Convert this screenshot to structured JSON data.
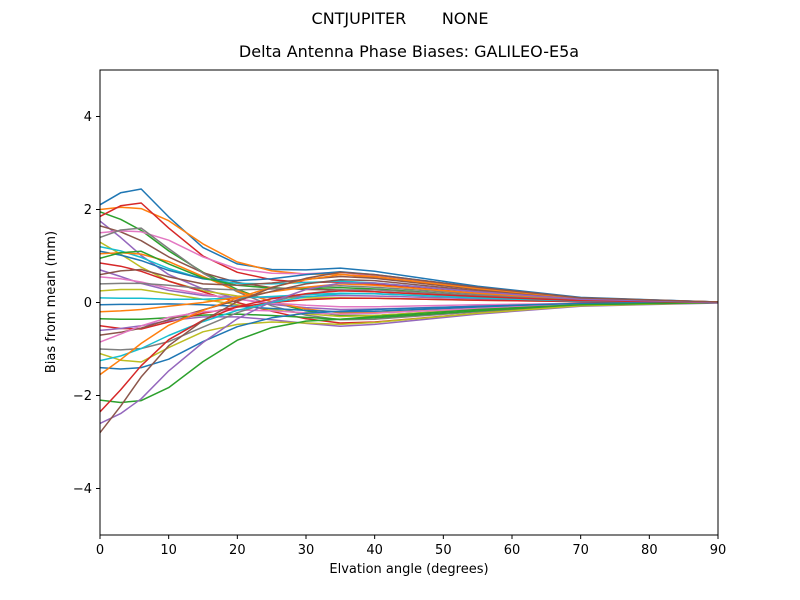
{
  "chart_data": {
    "type": "line",
    "suptitle": "CNTJUPITER       NONE",
    "title": "Delta Antenna Phase Biases: GALILEO-E5a",
    "xlabel": "Elvation angle (degrees)",
    "ylabel": "Bias from mean (mm)",
    "xlim": [
      0,
      90
    ],
    "ylim": [
      -5,
      5
    ],
    "xticks": [
      0,
      10,
      20,
      30,
      40,
      50,
      60,
      70,
      80,
      90
    ],
    "yticks": [
      -4,
      -2,
      0,
      2,
      4
    ],
    "grid": false,
    "legend": "none",
    "line_width": 1.5,
    "color_cycle": [
      "#1f77b4",
      "#ff7f0e",
      "#2ca02c",
      "#d62728",
      "#9467bd",
      "#8c564b",
      "#e377c2",
      "#7f7f7f",
      "#bcbd22",
      "#17becf"
    ],
    "x": [
      0,
      3,
      6,
      10,
      15,
      20,
      25,
      30,
      35,
      40,
      55,
      70,
      90
    ],
    "series": [
      {
        "values": [
          2.1,
          2.36,
          2.44,
          1.84,
          1.18,
          0.83,
          0.71,
          0.7,
          0.74,
          0.67,
          0.35,
          0.11,
          0.01
        ]
      },
      {
        "values": [
          2.0,
          2.05,
          2.02,
          1.76,
          1.26,
          0.87,
          0.68,
          0.61,
          0.61,
          0.53,
          0.28,
          0.08,
          0.01
        ]
      },
      {
        "values": [
          1.95,
          1.79,
          1.55,
          1.11,
          0.65,
          0.28,
          0.01,
          -0.18,
          -0.28,
          -0.28,
          -0.15,
          -0.05,
          0
        ]
      },
      {
        "values": [
          1.85,
          2.08,
          2.14,
          1.6,
          1.0,
          0.65,
          0.49,
          0.43,
          0.44,
          0.39,
          0.2,
          0.06,
          0
        ]
      },
      {
        "values": [
          1.75,
          1.4,
          1.01,
          0.6,
          0.29,
          0.08,
          -0.04,
          -0.11,
          -0.15,
          -0.14,
          -0.08,
          -0.02,
          0
        ]
      },
      {
        "values": [
          1.65,
          1.52,
          1.33,
          0.98,
          0.64,
          0.43,
          0.32,
          0.28,
          0.27,
          0.23,
          0.13,
          0.04,
          0
        ]
      },
      {
        "values": [
          1.5,
          1.54,
          1.52,
          1.34,
          0.98,
          0.72,
          0.63,
          0.62,
          0.65,
          0.57,
          0.3,
          0.09,
          0.01
        ]
      },
      {
        "values": [
          1.4,
          1.56,
          1.6,
          1.16,
          0.63,
          0.23,
          -0.07,
          -0.27,
          -0.37,
          -0.36,
          -0.2,
          -0.06,
          0
        ]
      },
      {
        "values": [
          1.3,
          1.04,
          0.76,
          0.46,
          0.25,
          0.14,
          0.1,
          0.1,
          0.1,
          0.09,
          0.05,
          0.02,
          0
        ]
      },
      {
        "values": [
          1.2,
          1.11,
          0.97,
          0.73,
          0.51,
          0.41,
          0.4,
          0.43,
          0.46,
          0.42,
          0.23,
          0.07,
          0
        ]
      },
      {
        "values": [
          1.1,
          1.02,
          0.9,
          0.69,
          0.51,
          0.47,
          0.51,
          0.6,
          0.66,
          0.6,
          0.33,
          0.1,
          0.01
        ]
      },
      {
        "values": [
          1.05,
          1.07,
          1.04,
          0.88,
          0.56,
          0.25,
          0.02,
          -0.14,
          -0.22,
          -0.22,
          -0.13,
          -0.04,
          0
        ]
      },
      {
        "values": [
          0.95,
          1.07,
          1.1,
          0.83,
          0.53,
          0.37,
          0.31,
          0.3,
          0.32,
          0.29,
          0.15,
          0.05,
          0
        ]
      },
      {
        "values": [
          0.85,
          0.78,
          0.67,
          0.46,
          0.23,
          0.0,
          -0.19,
          -0.35,
          -0.44,
          -0.42,
          -0.23,
          -0.07,
          0
        ]
      },
      {
        "values": [
          0.7,
          0.56,
          0.41,
          0.26,
          0.15,
          0.11,
          0.11,
          0.13,
          0.15,
          0.14,
          0.08,
          0.02,
          0
        ]
      },
      {
        "values": [
          0.6,
          0.68,
          0.71,
          0.55,
          0.4,
          0.37,
          0.42,
          0.5,
          0.56,
          0.52,
          0.28,
          0.08,
          0.01
        ]
      },
      {
        "values": [
          0.55,
          0.51,
          0.44,
          0.31,
          0.18,
          0.07,
          -0.01,
          -0.06,
          -0.09,
          -0.09,
          -0.05,
          -0.02,
          0
        ]
      },
      {
        "values": [
          0.4,
          0.41,
          0.41,
          0.37,
          0.3,
          0.27,
          0.29,
          0.33,
          0.36,
          0.33,
          0.18,
          0.05,
          0
        ]
      },
      {
        "values": [
          0.25,
          0.28,
          0.28,
          0.19,
          0.07,
          -0.05,
          -0.15,
          -0.24,
          -0.3,
          -0.28,
          -0.15,
          -0.05,
          0
        ]
      },
      {
        "values": [
          0.1,
          0.09,
          0.09,
          0.07,
          0.07,
          0.1,
          0.13,
          0.17,
          0.2,
          0.19,
          0.1,
          0.03,
          0
        ]
      },
      {
        "values": [
          -0.05,
          -0.04,
          -0.04,
          -0.03,
          -0.05,
          -0.08,
          -0.13,
          -0.17,
          -0.2,
          -0.19,
          -0.1,
          -0.03,
          0
        ]
      },
      {
        "values": [
          -0.2,
          -0.18,
          -0.15,
          -0.08,
          0.0,
          0.11,
          0.23,
          0.33,
          0.4,
          0.37,
          0.2,
          0.06,
          0
        ]
      },
      {
        "values": [
          -0.35,
          -0.36,
          -0.36,
          -0.33,
          -0.27,
          -0.25,
          -0.28,
          -0.32,
          -0.36,
          -0.33,
          -0.18,
          -0.05,
          0
        ]
      },
      {
        "values": [
          -0.5,
          -0.56,
          -0.57,
          -0.42,
          -0.23,
          -0.1,
          0.0,
          0.06,
          0.09,
          0.09,
          0.05,
          0.02,
          0
        ]
      },
      {
        "values": [
          -0.6,
          -0.56,
          -0.5,
          -0.39,
          -0.31,
          -0.31,
          -0.37,
          -0.45,
          -0.51,
          -0.47,
          -0.25,
          -0.08,
          -0.01
        ]
      },
      {
        "values": [
          -0.7,
          -0.64,
          -0.55,
          -0.37,
          -0.16,
          0.05,
          0.24,
          0.4,
          0.49,
          0.47,
          0.25,
          0.08,
          0
        ]
      },
      {
        "values": [
          -0.85,
          -0.68,
          -0.5,
          -0.32,
          -0.2,
          -0.16,
          -0.18,
          -0.22,
          -0.25,
          -0.23,
          -0.13,
          -0.04,
          0
        ]
      },
      {
        "values": [
          -1.0,
          -1.02,
          -0.99,
          -0.84,
          -0.53,
          -0.22,
          0.02,
          0.19,
          0.27,
          0.27,
          0.15,
          0.05,
          0
        ]
      },
      {
        "values": [
          -1.1,
          -1.24,
          -1.28,
          -0.97,
          -0.63,
          -0.47,
          -0.42,
          -0.44,
          -0.47,
          -0.43,
          -0.23,
          -0.07,
          0
        ]
      },
      {
        "values": [
          -1.25,
          -1.15,
          -0.99,
          -0.71,
          -0.41,
          -0.17,
          0.0,
          0.12,
          0.19,
          0.19,
          0.1,
          0.03,
          0
        ]
      },
      {
        "values": [
          -1.4,
          -1.43,
          -1.4,
          -1.22,
          -0.84,
          -0.52,
          -0.33,
          -0.23,
          -0.19,
          -0.15,
          -0.08,
          -0.02,
          0
        ]
      },
      {
        "values": [
          -1.55,
          -1.23,
          -0.88,
          -0.49,
          -0.17,
          0.1,
          0.33,
          0.49,
          0.6,
          0.56,
          0.3,
          0.09,
          0.01
        ]
      },
      {
        "values": [
          -2.1,
          -2.15,
          -2.11,
          -1.83,
          -1.27,
          -0.81,
          -0.54,
          -0.4,
          -0.36,
          -0.3,
          -0.15,
          -0.05,
          0
        ]
      },
      {
        "values": [
          -2.35,
          -1.88,
          -1.36,
          -0.8,
          -0.38,
          -0.09,
          0.08,
          0.19,
          0.25,
          0.23,
          0.13,
          0.04,
          0
        ]
      },
      {
        "values": [
          -2.6,
          -2.39,
          -2.07,
          -1.47,
          -0.86,
          -0.35,
          0.02,
          0.28,
          0.42,
          0.42,
          0.23,
          0.07,
          0
        ]
      },
      {
        "values": [
          -2.8,
          -2.23,
          -1.6,
          -0.93,
          -0.39,
          0.02,
          0.32,
          0.52,
          0.65,
          0.6,
          0.33,
          0.1,
          0.01
        ]
      }
    ]
  }
}
